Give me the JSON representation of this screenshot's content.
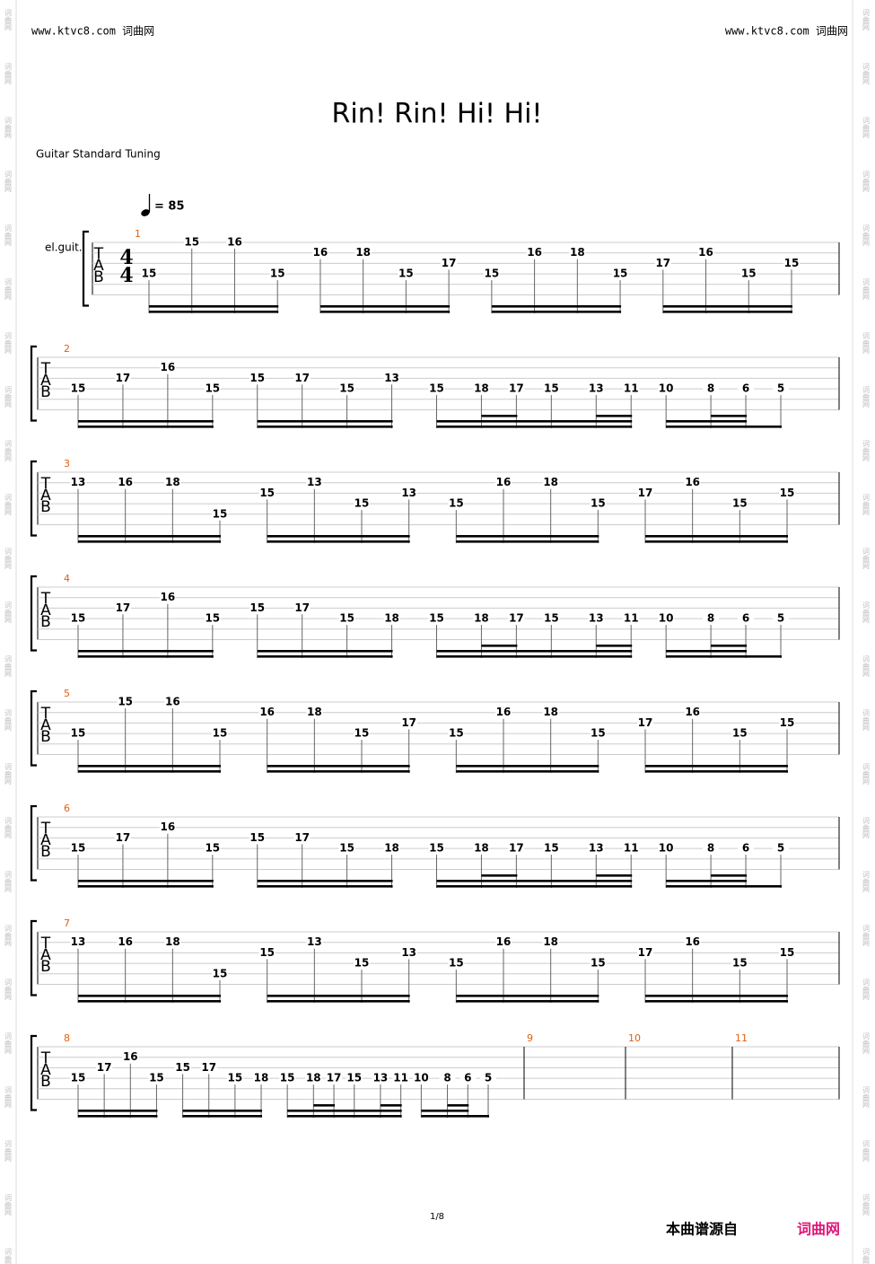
{
  "header": {
    "left": "www.ktvc8.com 词曲网",
    "right": "www.ktvc8.com 词曲网"
  },
  "title": "Rin! Rin! Hi! Hi!",
  "tuning": "Guitar Standard Tuning",
  "tempo": "= 85",
  "instrument": "el.guit.",
  "tab_letters": [
    "T",
    "A",
    "B"
  ],
  "time_signature": [
    "4",
    "4"
  ],
  "watermark": "词曲网",
  "page_number": "1/8",
  "footer": {
    "source": "本曲谱源自",
    "site": "词曲网"
  },
  "systems": [
    {
      "measures": [
        {
          "number": 1,
          "groups": [
            [
              {
                "fret": 15,
                "string": 4,
                "duration": 16
              },
              {
                "fret": 15,
                "string": 1,
                "duration": 16
              },
              {
                "fret": 16,
                "string": 1,
                "duration": 16
              },
              {
                "fret": 15,
                "string": 4,
                "duration": 16
              }
            ],
            [
              {
                "fret": 16,
                "string": 2,
                "duration": 16
              },
              {
                "fret": 18,
                "string": 2,
                "duration": 16
              },
              {
                "fret": 15,
                "string": 4,
                "duration": 16
              },
              {
                "fret": 17,
                "string": 3,
                "duration": 16
              }
            ],
            [
              {
                "fret": 15,
                "string": 4,
                "duration": 16
              },
              {
                "fret": 16,
                "string": 2,
                "duration": 16
              },
              {
                "fret": 18,
                "string": 2,
                "duration": 16
              },
              {
                "fret": 15,
                "string": 4,
                "duration": 16
              }
            ],
            [
              {
                "fret": 17,
                "string": 3,
                "duration": 16
              },
              {
                "fret": 16,
                "string": 2,
                "duration": 16
              },
              {
                "fret": 15,
                "string": 4,
                "duration": 16
              },
              {
                "fret": 15,
                "string": 3,
                "duration": 16
              }
            ]
          ]
        }
      ]
    },
    {
      "measures": [
        {
          "number": 2,
          "groups": [
            [
              {
                "fret": 15,
                "string": 4,
                "duration": 16
              },
              {
                "fret": 17,
                "string": 3,
                "duration": 16
              },
              {
                "fret": 16,
                "string": 2,
                "duration": 16
              },
              {
                "fret": 15,
                "string": 4,
                "duration": 16
              }
            ],
            [
              {
                "fret": 15,
                "string": 3,
                "duration": 16
              },
              {
                "fret": 17,
                "string": 3,
                "duration": 16
              },
              {
                "fret": 15,
                "string": 4,
                "duration": 16
              },
              {
                "fret": 13,
                "string": 3,
                "duration": 16
              }
            ],
            [
              {
                "fret": 15,
                "string": 4,
                "duration": 16
              },
              {
                "fret": 18,
                "string": 4,
                "duration": 32
              },
              {
                "fret": 17,
                "string": 4,
                "duration": 32
              },
              {
                "fret": 15,
                "string": 4,
                "duration": 16
              },
              {
                "fret": 13,
                "string": 4,
                "duration": 32
              },
              {
                "fret": 11,
                "string": 4,
                "duration": 32
              }
            ],
            [
              {
                "fret": 10,
                "string": 4,
                "duration": 16
              },
              {
                "fret": 8,
                "string": 4,
                "duration": 32
              },
              {
                "fret": 6,
                "string": 4,
                "duration": 32
              },
              {
                "fret": 5,
                "string": 4,
                "duration": 8
              }
            ]
          ]
        }
      ]
    },
    {
      "measures": [
        {
          "number": 3,
          "groups": [
            [
              {
                "fret": 13,
                "string": 2,
                "duration": 16
              },
              {
                "fret": 16,
                "string": 2,
                "duration": 16
              },
              {
                "fret": 18,
                "string": 2,
                "duration": 16
              },
              {
                "fret": 15,
                "string": 5,
                "duration": 16
              }
            ],
            [
              {
                "fret": 15,
                "string": 3,
                "duration": 16
              },
              {
                "fret": 13,
                "string": 2,
                "duration": 16
              },
              {
                "fret": 15,
                "string": 4,
                "duration": 16
              },
              {
                "fret": 13,
                "string": 3,
                "duration": 16
              }
            ],
            [
              {
                "fret": 15,
                "string": 4,
                "duration": 16
              },
              {
                "fret": 16,
                "string": 2,
                "duration": 16
              },
              {
                "fret": 18,
                "string": 2,
                "duration": 16
              },
              {
                "fret": 15,
                "string": 4,
                "duration": 16
              }
            ],
            [
              {
                "fret": 17,
                "string": 3,
                "duration": 16
              },
              {
                "fret": 16,
                "string": 2,
                "duration": 16
              },
              {
                "fret": 15,
                "string": 4,
                "duration": 16
              },
              {
                "fret": 15,
                "string": 3,
                "duration": 16
              }
            ]
          ]
        }
      ]
    },
    {
      "measures": [
        {
          "number": 4,
          "groups": [
            [
              {
                "fret": 15,
                "string": 4,
                "duration": 16
              },
              {
                "fret": 17,
                "string": 3,
                "duration": 16
              },
              {
                "fret": 16,
                "string": 2,
                "duration": 16
              },
              {
                "fret": 15,
                "string": 4,
                "duration": 16
              }
            ],
            [
              {
                "fret": 15,
                "string": 3,
                "duration": 16
              },
              {
                "fret": 17,
                "string": 3,
                "duration": 16
              },
              {
                "fret": 15,
                "string": 4,
                "duration": 16
              },
              {
                "fret": 18,
                "string": 4,
                "duration": 16
              }
            ],
            [
              {
                "fret": 15,
                "string": 4,
                "duration": 16
              },
              {
                "fret": 18,
                "string": 4,
                "duration": 32
              },
              {
                "fret": 17,
                "string": 4,
                "duration": 32
              },
              {
                "fret": 15,
                "string": 4,
                "duration": 16
              },
              {
                "fret": 13,
                "string": 4,
                "duration": 32
              },
              {
                "fret": 11,
                "string": 4,
                "duration": 32
              }
            ],
            [
              {
                "fret": 10,
                "string": 4,
                "duration": 16
              },
              {
                "fret": 8,
                "string": 4,
                "duration": 32
              },
              {
                "fret": 6,
                "string": 4,
                "duration": 32
              },
              {
                "fret": 5,
                "string": 4,
                "duration": 8
              }
            ]
          ]
        }
      ]
    },
    {
      "measures": [
        {
          "number": 5,
          "groups": [
            [
              {
                "fret": 15,
                "string": 4,
                "duration": 16
              },
              {
                "fret": 15,
                "string": 1,
                "duration": 16
              },
              {
                "fret": 16,
                "string": 1,
                "duration": 16
              },
              {
                "fret": 15,
                "string": 4,
                "duration": 16
              }
            ],
            [
              {
                "fret": 16,
                "string": 2,
                "duration": 16
              },
              {
                "fret": 18,
                "string": 2,
                "duration": 16
              },
              {
                "fret": 15,
                "string": 4,
                "duration": 16
              },
              {
                "fret": 17,
                "string": 3,
                "duration": 16
              }
            ],
            [
              {
                "fret": 15,
                "string": 4,
                "duration": 16
              },
              {
                "fret": 16,
                "string": 2,
                "duration": 16
              },
              {
                "fret": 18,
                "string": 2,
                "duration": 16
              },
              {
                "fret": 15,
                "string": 4,
                "duration": 16
              }
            ],
            [
              {
                "fret": 17,
                "string": 3,
                "duration": 16
              },
              {
                "fret": 16,
                "string": 2,
                "duration": 16
              },
              {
                "fret": 15,
                "string": 4,
                "duration": 16
              },
              {
                "fret": 15,
                "string": 3,
                "duration": 16
              }
            ]
          ]
        }
      ]
    },
    {
      "measures": [
        {
          "number": 6,
          "groups": [
            [
              {
                "fret": 15,
                "string": 4,
                "duration": 16
              },
              {
                "fret": 17,
                "string": 3,
                "duration": 16
              },
              {
                "fret": 16,
                "string": 2,
                "duration": 16
              },
              {
                "fret": 15,
                "string": 4,
                "duration": 16
              }
            ],
            [
              {
                "fret": 15,
                "string": 3,
                "duration": 16
              },
              {
                "fret": 17,
                "string": 3,
                "duration": 16
              },
              {
                "fret": 15,
                "string": 4,
                "duration": 16
              },
              {
                "fret": 18,
                "string": 4,
                "duration": 16
              }
            ],
            [
              {
                "fret": 15,
                "string": 4,
                "duration": 16
              },
              {
                "fret": 18,
                "string": 4,
                "duration": 32
              },
              {
                "fret": 17,
                "string": 4,
                "duration": 32
              },
              {
                "fret": 15,
                "string": 4,
                "duration": 16
              },
              {
                "fret": 13,
                "string": 4,
                "duration": 32
              },
              {
                "fret": 11,
                "string": 4,
                "duration": 32
              }
            ],
            [
              {
                "fret": 10,
                "string": 4,
                "duration": 16
              },
              {
                "fret": 8,
                "string": 4,
                "duration": 32
              },
              {
                "fret": 6,
                "string": 4,
                "duration": 32
              },
              {
                "fret": 5,
                "string": 4,
                "duration": 8
              }
            ]
          ]
        }
      ]
    },
    {
      "measures": [
        {
          "number": 7,
          "groups": [
            [
              {
                "fret": 13,
                "string": 2,
                "duration": 16
              },
              {
                "fret": 16,
                "string": 2,
                "duration": 16
              },
              {
                "fret": 18,
                "string": 2,
                "duration": 16
              },
              {
                "fret": 15,
                "string": 5,
                "duration": 16
              }
            ],
            [
              {
                "fret": 15,
                "string": 3,
                "duration": 16
              },
              {
                "fret": 13,
                "string": 2,
                "duration": 16
              },
              {
                "fret": 15,
                "string": 4,
                "duration": 16
              },
              {
                "fret": 13,
                "string": 3,
                "duration": 16
              }
            ],
            [
              {
                "fret": 15,
                "string": 4,
                "duration": 16
              },
              {
                "fret": 16,
                "string": 2,
                "duration": 16
              },
              {
                "fret": 18,
                "string": 2,
                "duration": 16
              },
              {
                "fret": 15,
                "string": 4,
                "duration": 16
              }
            ],
            [
              {
                "fret": 17,
                "string": 3,
                "duration": 16
              },
              {
                "fret": 16,
                "string": 2,
                "duration": 16
              },
              {
                "fret": 15,
                "string": 4,
                "duration": 16
              },
              {
                "fret": 15,
                "string": 3,
                "duration": 16
              }
            ]
          ]
        }
      ]
    },
    {
      "measures": [
        {
          "number": 8,
          "groups": [
            [
              {
                "fret": 15,
                "string": 4,
                "duration": 16
              },
              {
                "fret": 17,
                "string": 3,
                "duration": 16
              },
              {
                "fret": 16,
                "string": 2,
                "duration": 16
              },
              {
                "fret": 15,
                "string": 4,
                "duration": 16
              }
            ],
            [
              {
                "fret": 15,
                "string": 3,
                "duration": 16
              },
              {
                "fret": 17,
                "string": 3,
                "duration": 16
              },
              {
                "fret": 15,
                "string": 4,
                "duration": 16
              },
              {
                "fret": 18,
                "string": 4,
                "duration": 16
              }
            ],
            [
              {
                "fret": 15,
                "string": 4,
                "duration": 16
              },
              {
                "fret": 18,
                "string": 4,
                "duration": 32
              },
              {
                "fret": 17,
                "string": 4,
                "duration": 32
              },
              {
                "fret": 15,
                "string": 4,
                "duration": 16
              },
              {
                "fret": 13,
                "string": 4,
                "duration": 32
              },
              {
                "fret": 11,
                "string": 4,
                "duration": 32
              }
            ],
            [
              {
                "fret": 10,
                "string": 4,
                "duration": 16
              },
              {
                "fret": 8,
                "string": 4,
                "duration": 32
              },
              {
                "fret": 6,
                "string": 4,
                "duration": 32
              },
              {
                "fret": 5,
                "string": 4,
                "duration": 8
              }
            ]
          ]
        },
        {
          "number": 9,
          "groups": []
        },
        {
          "number": 10,
          "groups": []
        },
        {
          "number": 11,
          "groups": []
        }
      ]
    }
  ]
}
